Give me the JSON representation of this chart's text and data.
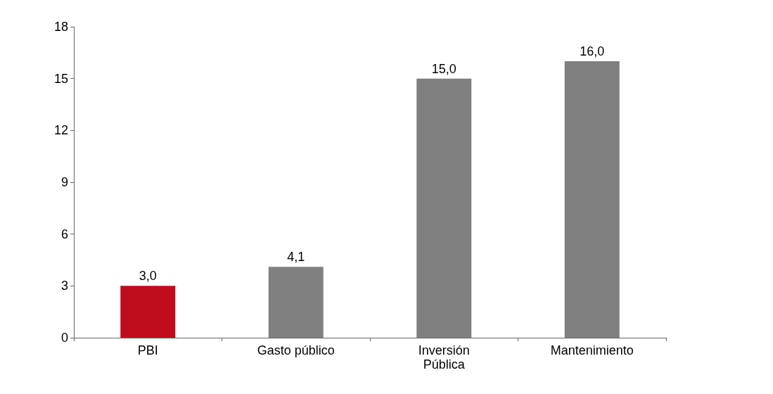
{
  "chart_data": {
    "type": "bar",
    "categories": [
      "PBI",
      "Gasto público",
      "Inversión Pública",
      "Mantenimiento"
    ],
    "values": [
      3.0,
      4.1,
      15.0,
      16.0
    ],
    "colors": [
      "#c00d1e",
      "#808080",
      "#808080",
      "#808080"
    ],
    "ylim": [
      0,
      18
    ],
    "yticks": [
      0,
      3,
      6,
      9,
      12,
      15,
      18
    ],
    "value_labels": [
      "3,0",
      "4,1",
      "15,0",
      "16,0"
    ],
    "grid": false
  }
}
